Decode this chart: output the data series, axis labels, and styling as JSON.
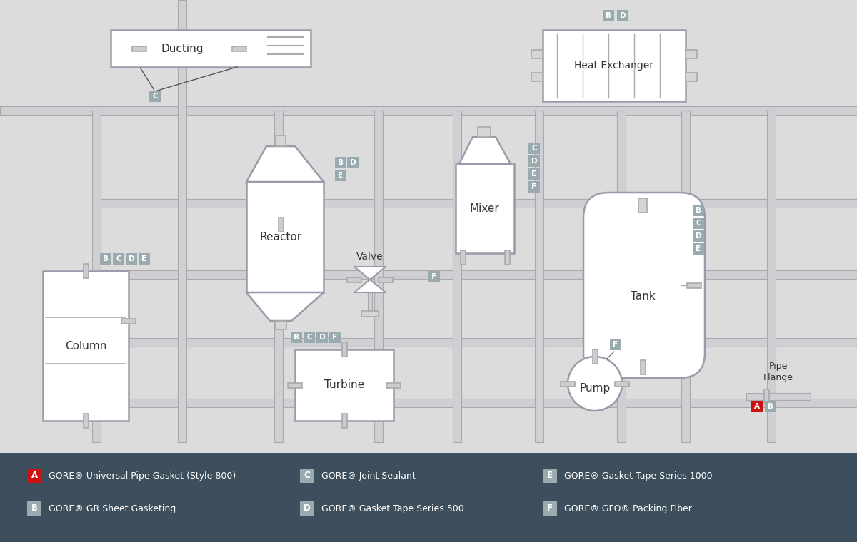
{
  "bg_color": "#dcdcdc",
  "legend_bg": "#3d4f5c",
  "pipe_color": "#d0d0d4",
  "pipe_outline": "#aaaaaa",
  "equipment_fill": "#ffffff",
  "equipment_stroke": "#9a9aaa",
  "label_bg": "#9aabb0",
  "red_color": "#cc1111",
  "text_color": "#333333",
  "legend_text_color": "#ffffff",
  "legend_items": [
    {
      "key": "A",
      "text": "GORE® Universal Pipe Gasket (Style 800)",
      "red": true
    },
    {
      "key": "B",
      "text": "GORE® GR Sheet Gasketing",
      "red": false
    },
    {
      "key": "C",
      "text": "GORE® Joint Sealant",
      "red": false
    },
    {
      "key": "D",
      "text": "GORE® Gasket Tape Series 500",
      "red": false
    },
    {
      "key": "E",
      "text": "GORE® Gasket Tape Series 1000",
      "red": false
    },
    {
      "key": "F",
      "text": "GORE® GFO® Packing Fiber",
      "red": false
    }
  ]
}
